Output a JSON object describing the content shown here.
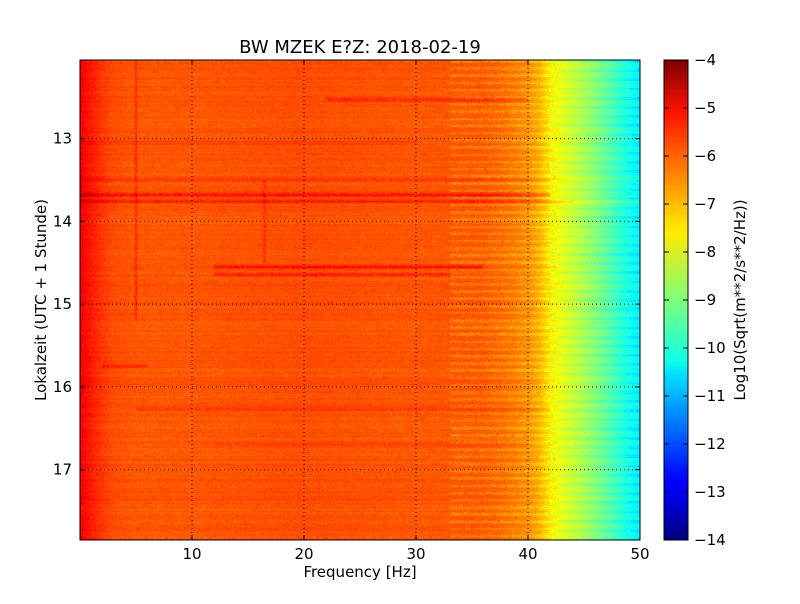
{
  "chart_data": {
    "type": "heatmap",
    "title": "BW MZEK E?Z: 2018-02-19",
    "xlabel": "Frequency [Hz]",
    "ylabel": "Lokalzeit (UTC + 1 Stunde)",
    "xlim": [
      0,
      50
    ],
    "ylim": [
      17.85,
      12.05
    ],
    "x_ticks": [
      10,
      20,
      30,
      40,
      50
    ],
    "x_tick_labels": [
      "10",
      "20",
      "30",
      "40",
      "50"
    ],
    "y_ticks": [
      13,
      14,
      15,
      16,
      17
    ],
    "y_tick_labels": [
      "13",
      "14",
      "15",
      "16",
      "17"
    ],
    "grid": true,
    "colorbar": {
      "label": "Log10(Sqrt(m**2/s**2/Hz))",
      "range": [
        -14,
        -4
      ],
      "ticks": [
        -4,
        -5,
        -6,
        -7,
        -8,
        -9,
        -10,
        -11,
        -12,
        -13,
        -14
      ],
      "tick_labels": [
        "−4",
        "−5",
        "−6",
        "−7",
        "−8",
        "−9",
        "−10",
        "−11",
        "−12",
        "−13",
        "−14"
      ],
      "colormap": "jet"
    },
    "spectral_profile": [
      [
        0,
        -5.2
      ],
      [
        1,
        -5.5
      ],
      [
        2,
        -5.8
      ],
      [
        3,
        -6.0
      ],
      [
        5,
        -6.1
      ],
      [
        10,
        -6.1
      ],
      [
        20,
        -6.0
      ],
      [
        30,
        -6.1
      ],
      [
        36,
        -6.1
      ],
      [
        38,
        -6.3
      ],
      [
        40,
        -6.6
      ],
      [
        41,
        -6.9
      ],
      [
        42,
        -7.5
      ],
      [
        43,
        -7.9
      ],
      [
        45,
        -8.5
      ],
      [
        47,
        -9.2
      ],
      [
        48.5,
        -9.8
      ],
      [
        50,
        -10.3
      ]
    ],
    "horizontal_bands": [
      {
        "time": 12.53,
        "f_start": 22,
        "f_end": 40,
        "delta": 0.55
      },
      {
        "time": 13.05,
        "f_start": 0,
        "f_end": 30,
        "delta": 0.25
      },
      {
        "time": 13.5,
        "f_start": 0,
        "f_end": 50,
        "delta": 0.25
      },
      {
        "time": 13.68,
        "f_start": 0,
        "f_end": 42,
        "delta": 0.9
      },
      {
        "time": 13.76,
        "f_start": 0,
        "f_end": 50,
        "delta": 0.7
      },
      {
        "time": 14.55,
        "f_start": 12,
        "f_end": 36,
        "delta": 0.75
      },
      {
        "time": 14.64,
        "f_start": 12,
        "f_end": 33,
        "delta": 0.6
      },
      {
        "time": 15.75,
        "f_start": 2,
        "f_end": 6,
        "delta": 0.5
      },
      {
        "time": 16.27,
        "f_start": 5,
        "f_end": 42,
        "delta": 0.35
      },
      {
        "time": 16.7,
        "f_start": 12,
        "f_end": 40,
        "delta": 0.25
      }
    ],
    "vertical_lines": [
      {
        "freq": 5,
        "t_start": 12.05,
        "t_end": 15.2,
        "delta": 0.45
      },
      {
        "freq": 16.5,
        "t_start": 13.5,
        "t_end": 14.5,
        "delta": 0.3
      }
    ]
  }
}
